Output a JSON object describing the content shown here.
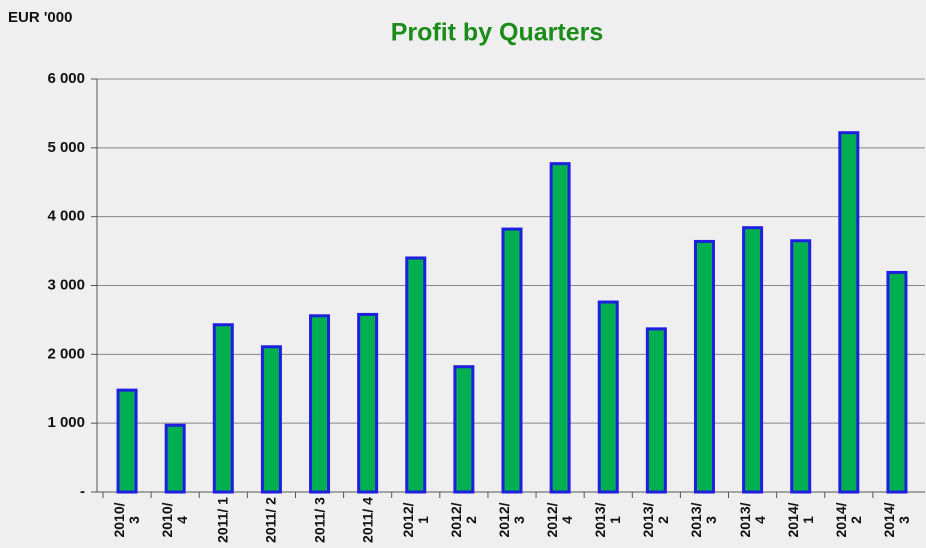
{
  "chart_data": {
    "type": "bar",
    "title": "Profit by Quarters",
    "y_label": "EUR '000",
    "categories": [
      "2010/ 3",
      "2010/ 4",
      "2011/ 1",
      "2011/ 2",
      "2011/ 3",
      "2011/ 4",
      "2012/ 1",
      "2012/ 2",
      "2012/ 3",
      "2012/ 4",
      "2013/ 1",
      "2013/ 2",
      "2013/ 3",
      "2013/ 4",
      "2014/ 1",
      "2014/ 2",
      "2014/ 3"
    ],
    "values": [
      1480,
      970,
      2430,
      2110,
      2560,
      2580,
      3400,
      1820,
      3820,
      4770,
      2760,
      2370,
      3640,
      3840,
      3650,
      5220,
      3190
    ],
    "color": "#00b050",
    "edge_color": "#1f1fe0",
    "ylim": [
      0,
      6000
    ],
    "yticks": [
      {
        "value": 0,
        "label": "-"
      },
      {
        "value": 1000,
        "label": "1 000"
      },
      {
        "value": 2000,
        "label": "2 000"
      },
      {
        "value": 3000,
        "label": "3 000"
      },
      {
        "value": 4000,
        "label": "4 000"
      },
      {
        "value": 5000,
        "label": "5 000"
      },
      {
        "value": 6000,
        "label": "6 000"
      }
    ],
    "grid": true
  }
}
